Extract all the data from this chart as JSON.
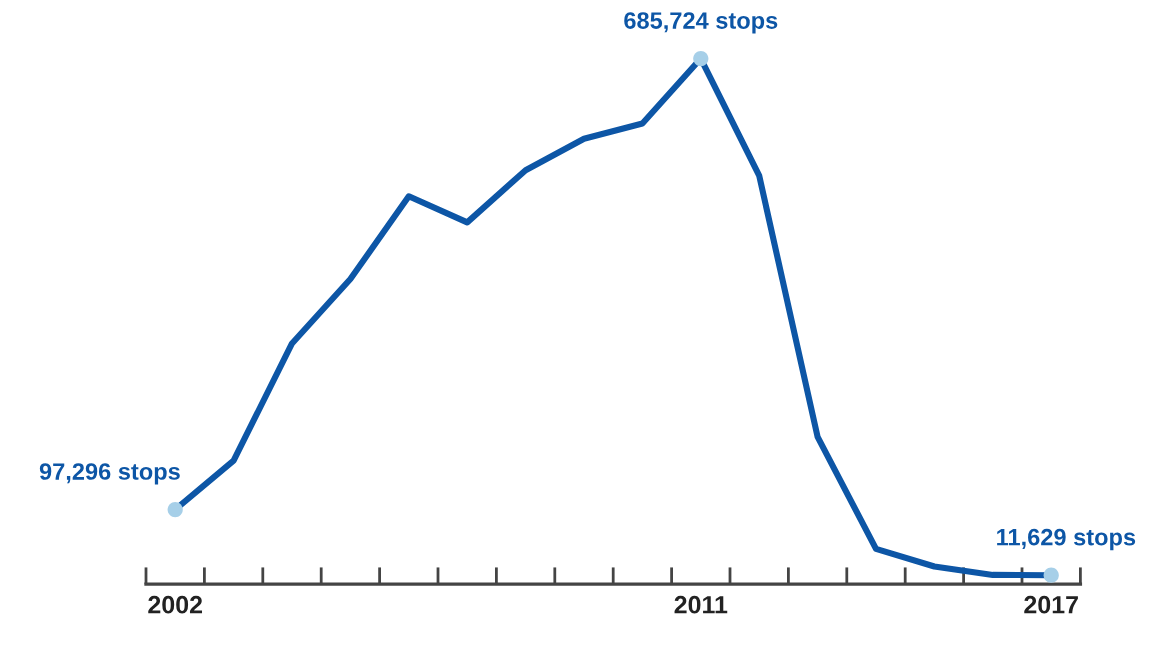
{
  "chart_data": {
    "type": "line",
    "x": [
      2002,
      2003,
      2004,
      2005,
      2006,
      2007,
      2008,
      2009,
      2010,
      2011,
      2012,
      2013,
      2014,
      2015,
      2016,
      2017
    ],
    "series": [
      {
        "color": "#0d56a6",
        "values": [
          97296,
          161000,
          314000,
          398000,
          506000,
          472000,
          540000,
          581000,
          601000,
          685724,
          533000,
          192000,
          46000,
          23000,
          12000,
          11629
        ],
        "value_labels": [
          "97,296 stops",
          null,
          null,
          null,
          null,
          null,
          null,
          null,
          null,
          "685,724 stops",
          null,
          null,
          null,
          null,
          null,
          "11,629 stops"
        ]
      }
    ],
    "xlim": [
      2001.5,
      2017.5
    ],
    "xticks": [
      {
        "value": 2001.5,
        "label": null
      },
      {
        "value": 2002,
        "label": "2002"
      },
      {
        "value": 2002.5,
        "label": null
      },
      {
        "value": 2003.5,
        "label": null
      },
      {
        "value": 2004.5,
        "label": null
      },
      {
        "value": 2005.5,
        "label": null
      },
      {
        "value": 2006.5,
        "label": null
      },
      {
        "value": 2007.5,
        "label": null
      },
      {
        "value": 2008.5,
        "label": null
      },
      {
        "value": 2009.5,
        "label": null
      },
      {
        "value": 2010.5,
        "label": null
      },
      {
        "value": 2011,
        "label": "2011"
      },
      {
        "value": 2011.5,
        "label": null
      },
      {
        "value": 2012.5,
        "label": null
      },
      {
        "value": 2013.5,
        "label": null
      },
      {
        "value": 2014.5,
        "label": null
      },
      {
        "value": 2015.5,
        "label": null
      },
      {
        "value": 2016.5,
        "label": null
      },
      {
        "value": 2017,
        "label": "2017"
      },
      {
        "value": 2017.5,
        "label": null
      }
    ],
    "tick_labels": "x",
    "grid": false,
    "legend": false,
    "marker": "none",
    "line_style": "solid"
  }
}
